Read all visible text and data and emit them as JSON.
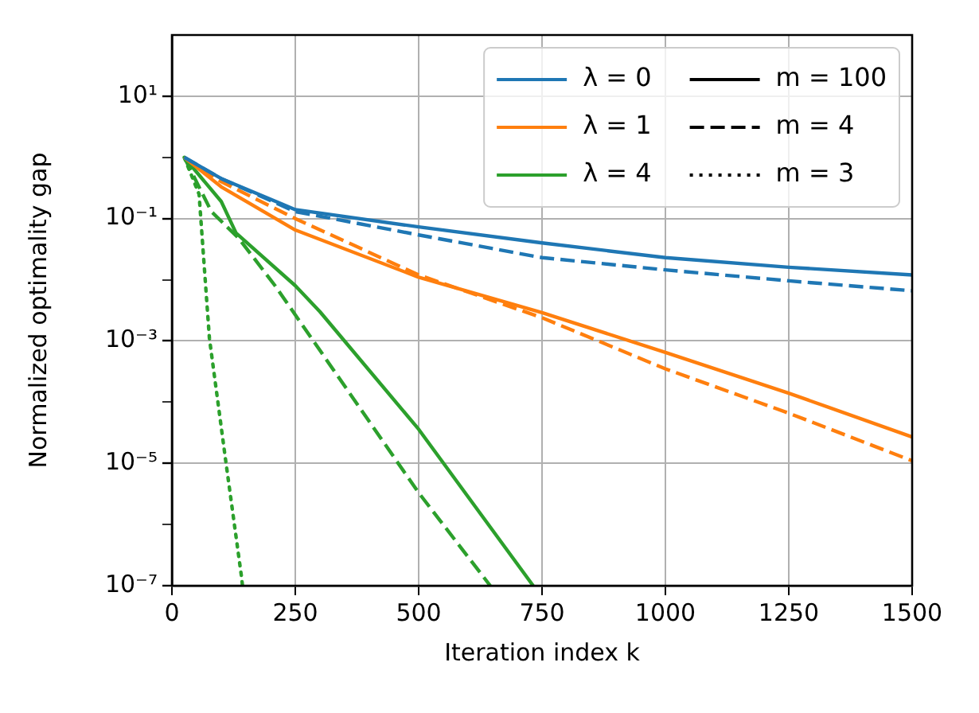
{
  "chart_data": {
    "type": "line",
    "xlabel": "Iteration index k",
    "ylabel": "Normalized optimality gap",
    "xlim": [
      0,
      1500
    ],
    "xticks": [
      0,
      250,
      500,
      750,
      1000,
      1250,
      1500
    ],
    "ylim": [
      1e-07,
      100
    ],
    "log": "y",
    "yticks": [
      {
        "value": 10,
        "label": "10¹"
      },
      {
        "value": 1,
        "label": null
      },
      {
        "value": 0.1,
        "label": "10⁻¹"
      },
      {
        "value": 0.01,
        "label": null
      },
      {
        "value": 0.001,
        "label": "10⁻³"
      },
      {
        "value": 0.0001,
        "label": null
      },
      {
        "value": 1e-05,
        "label": "10⁻⁵"
      },
      {
        "value": 1e-06,
        "label": null
      },
      {
        "value": 1e-07,
        "label": "10⁻⁷"
      }
    ],
    "grid": true,
    "legend": "top right",
    "marker": "none",
    "series": [
      {
        "name": "λ = 0",
        "color": "#1f77b4",
        "line_style": "solid",
        "x": [
          25,
          100,
          250,
          500,
          750,
          1000,
          1250,
          1500
        ],
        "values": [
          1,
          0.45,
          0.14,
          0.073,
          0.04,
          0.023,
          0.016,
          0.012
        ]
      },
      {
        "name": "λ = 1",
        "color": "#ff7f0e",
        "line_style": "solid",
        "x": [
          25,
          100,
          250,
          500,
          750,
          1000,
          1250,
          1500
        ],
        "values": [
          1,
          0.33,
          0.065,
          0.011,
          0.0029,
          0.00065,
          0.00014,
          2.7e-05
        ]
      },
      {
        "name": "λ = 4",
        "color": "#2ca02c",
        "line_style": "solid",
        "x": [
          25,
          100,
          130,
          250,
          300,
          500,
          732
        ],
        "values": [
          1,
          0.19,
          0.058,
          0.008,
          0.003,
          3.6e-05,
          1e-07
        ]
      },
      {
        "color": "#1f77b4",
        "line_style": "dashed",
        "x": [
          25,
          100,
          250,
          500,
          750,
          1000,
          1250,
          1500
        ],
        "values": [
          1,
          0.45,
          0.13,
          0.054,
          0.023,
          0.0145,
          0.0096,
          0.0066
        ]
      },
      {
        "color": "#ff7f0e",
        "line_style": "dashed",
        "x": [
          25,
          100,
          250,
          500,
          750,
          1000,
          1250,
          1500
        ],
        "values": [
          1,
          0.4,
          0.1,
          0.012,
          0.0024,
          0.00035,
          6.6e-05,
          1.1e-05
        ]
      },
      {
        "color": "#2ca02c",
        "line_style": "dashed",
        "x": [
          25,
          80,
          135,
          209,
          500,
          645
        ],
        "values": [
          1,
          0.13,
          0.048,
          0.008,
          3.3e-06,
          1e-07
        ]
      },
      {
        "color": "#2ca02c",
        "line_style": "dotted",
        "x": [
          25,
          55,
          76,
          109,
          141,
          143
        ],
        "values": [
          1,
          0.25,
          0.0011,
          1.1e-05,
          1.4e-07,
          1e-07
        ]
      },
      {
        "name": "m = 100",
        "color": "#000000",
        "line_style": "solid"
      },
      {
        "name": "m = 4",
        "color": "#000000",
        "line_style": "dashed"
      },
      {
        "name": "m = 3",
        "color": "#000000",
        "line_style": "dotted"
      }
    ]
  }
}
